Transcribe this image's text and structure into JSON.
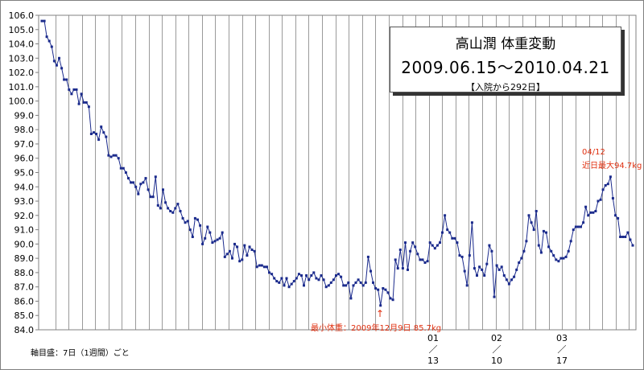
{
  "title": {
    "main": "高山潤 体重変動",
    "range": "2009.06.15〜2010.04.21",
    "days": "【入院から292日】"
  },
  "annotations": {
    "min_arrow": "↑",
    "min_label": "最小体重：2009年12月9日 85.7kg",
    "recent_date": "04/12",
    "recent_label": "近日最大94.7kg"
  },
  "axis_note": "軸目盛：7日（1週間）ごと",
  "month_marks": [
    {
      "month": "01",
      "sep": "／",
      "day": "13"
    },
    {
      "month": "02",
      "sep": "／",
      "day": "10"
    },
    {
      "month": "03",
      "sep": "／",
      "day": "17"
    }
  ],
  "colors": {
    "line": "#1a2a8c",
    "annotation": "#e03010",
    "grid": "#9a9a9a"
  },
  "chart_data": {
    "type": "line",
    "title": "高山潤 体重変動",
    "xlabel": "",
    "ylabel": "",
    "ylim": [
      84.0,
      106.0
    ],
    "yticks": [
      "84.0",
      "85.0",
      "86.0",
      "87.0",
      "88.0",
      "89.0",
      "90.0",
      "91.0",
      "92.0",
      "93.0",
      "94.0",
      "95.0",
      "96.0",
      "97.0",
      "98.0",
      "99.0",
      "100.0",
      "101.0",
      "102.0",
      "103.0",
      "104.0",
      "105.0",
      "106.0"
    ],
    "x_start": "2009-06-15",
    "x_end": "2010-04-21",
    "grid": "vertical lines every 7 days, no horizontal lines",
    "series": [
      {
        "values": [
          105.6,
          105.6,
          104.5,
          104.2,
          103.8,
          102.8,
          102.5,
          103.0,
          102.3,
          101.5,
          101.5,
          100.8,
          100.5,
          100.8,
          100.8,
          99.8,
          100.5,
          99.9,
          99.9,
          99.6,
          97.7,
          97.8,
          97.7,
          97.3,
          98.2,
          97.8,
          97.5,
          96.2,
          96.1,
          96.2,
          96.2,
          96.0,
          95.3,
          95.3,
          95.0,
          94.6,
          94.3,
          94.3,
          94.0,
          93.5,
          94.2,
          94.3,
          94.6,
          93.8,
          93.3,
          93.3,
          94.7,
          92.7,
          92.5,
          93.8,
          92.9,
          92.5,
          92.3,
          92.2,
          92.5,
          92.8,
          92.3,
          91.8,
          91.5,
          91.6,
          91.0,
          90.5,
          91.8,
          91.7,
          91.3,
          90.0,
          90.4,
          91.2,
          90.8,
          90.1,
          90.2,
          90.3,
          90.4,
          90.8,
          89.1,
          89.3,
          89.5,
          89.0,
          90.0,
          89.8,
          88.8,
          88.9,
          89.9,
          89.2,
          89.8,
          89.6,
          89.5,
          88.4,
          88.5,
          88.5,
          88.4,
          88.4,
          88.0,
          87.9,
          87.6,
          87.4,
          87.3,
          87.6,
          87.1,
          87.6,
          87.0,
          87.2,
          87.4,
          87.6,
          87.9,
          87.8,
          87.1,
          87.8,
          87.5,
          87.8,
          88.0,
          87.6,
          87.5,
          87.8,
          87.5,
          87.0,
          87.1,
          87.3,
          87.5,
          87.8,
          87.9,
          87.7,
          87.1,
          87.1,
          87.3,
          86.2,
          87.1,
          87.3,
          87.5,
          87.3,
          87.1,
          87.3,
          89.1,
          88.1,
          87.3,
          86.9,
          86.8,
          85.7,
          86.9,
          86.8,
          86.6,
          86.2,
          86.1,
          88.9,
          88.3,
          89.6,
          88.3,
          90.1,
          88.2,
          89.5,
          90.1,
          89.8,
          89.3,
          88.9,
          88.9,
          88.7,
          88.8,
          90.1,
          89.9,
          89.7,
          89.9,
          90.1,
          90.8,
          92.0,
          91.0,
          90.8,
          90.4,
          90.4,
          90.1,
          89.2,
          89.1,
          88.1,
          87.1,
          89.2,
          91.5,
          88.3,
          87.8,
          88.4,
          88.2,
          87.8,
          88.6,
          89.9,
          89.5,
          86.3,
          88.5,
          88.2,
          88.4,
          87.8,
          87.5,
          87.2,
          87.5,
          87.7,
          88.2,
          88.7,
          89.0,
          89.5,
          90.2,
          92.0,
          91.5,
          91.0,
          92.3,
          89.9,
          89.4,
          90.9,
          90.8,
          89.8,
          89.5,
          89.2,
          88.9,
          88.8,
          89.0,
          89.0,
          89.1,
          89.5,
          90.2,
          91.0,
          91.2,
          91.2,
          91.2,
          91.5,
          92.6,
          92.0,
          92.2,
          92.2,
          92.3,
          93.0,
          93.1,
          93.8,
          94.1,
          94.2,
          94.7,
          93.2,
          92.0,
          91.8,
          90.5,
          90.5,
          90.5,
          90.8,
          90.3,
          89.9
        ]
      }
    ],
    "min_point": {
      "date": "2009-12-09",
      "value": 85.7
    },
    "recent_max_point": {
      "date": "2010-04-12",
      "value": 94.7
    }
  }
}
